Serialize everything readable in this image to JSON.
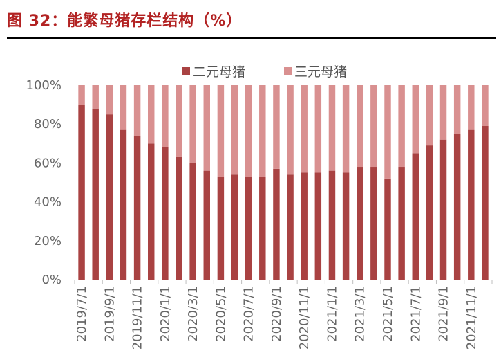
{
  "figure_title": "图 32：能繁母猪存栏结构（%）",
  "colors": {
    "series_1": "#a94242",
    "series_2": "#d99090",
    "title": "#b22222",
    "axis_text": "#666666",
    "legend_highlight": "#a9c9e6"
  },
  "chart_data": {
    "type": "bar",
    "stacked": true,
    "categories": [
      "2019/7/1",
      "2019/8/1",
      "2019/9/1",
      "2019/10/1",
      "2019/11/1",
      "2019/12/1",
      "2020/1/1",
      "2020/2/1",
      "2020/3/1",
      "2020/4/1",
      "2020/5/1",
      "2020/6/1",
      "2020/7/1",
      "2020/8/1",
      "2020/9/1",
      "2020/10/1",
      "2020/11/1",
      "2020/12/1",
      "2021/1/1",
      "2021/2/1",
      "2021/3/1",
      "2021/4/1",
      "2021/5/1",
      "2021/6/1",
      "2021/7/1",
      "2021/8/1",
      "2021/9/1",
      "2021/10/1",
      "2021/11/1",
      "2021/12/1"
    ],
    "x_tick_labels": [
      "2019/7/1",
      "2019/9/1",
      "2019/11/1",
      "2020/1/1",
      "2020/3/1",
      "2020/5/1",
      "2020/7/1",
      "2020/9/1",
      "2020/11/1",
      "2021/1/1",
      "2021/3/1",
      "2021/5/1",
      "2021/7/1",
      "2021/9/1",
      "2021/11/1"
    ],
    "series": [
      {
        "name": "二元母猪",
        "values": [
          90,
          88,
          85,
          77,
          74,
          70,
          68,
          63,
          60,
          56,
          53,
          54,
          53,
          53,
          57,
          54,
          55,
          55,
          56,
          55,
          58,
          58,
          52,
          58,
          65,
          69,
          72,
          75,
          77,
          79
        ]
      },
      {
        "name": "三元母猪",
        "values": [
          10,
          12,
          15,
          23,
          26,
          30,
          32,
          37,
          40,
          44,
          47,
          46,
          47,
          47,
          43,
          46,
          45,
          45,
          44,
          45,
          42,
          42,
          48,
          42,
          35,
          31,
          28,
          25,
          23,
          21
        ]
      }
    ],
    "y_ticks": [
      "0%",
      "20%",
      "40%",
      "60%",
      "80%",
      "100%"
    ],
    "ylim": [
      0,
      100
    ],
    "legend_position": "top",
    "grid": false
  }
}
